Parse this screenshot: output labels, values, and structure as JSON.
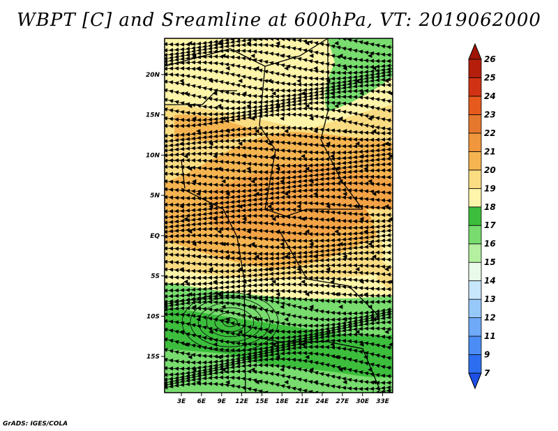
{
  "title": "WBPT [C] and Sreamline at 600hPa, VT: 2019062000",
  "credit": "GrADS: IGES/COLA",
  "map": {
    "lat_labels": [
      "20N",
      "15N",
      "10N",
      "5N",
      "EQ",
      "5S",
      "10S",
      "15S"
    ],
    "lat_values": [
      20,
      15,
      10,
      5,
      0,
      -5,
      -10,
      -15
    ],
    "lon_labels": [
      "3E",
      "6E",
      "9E",
      "12E",
      "15E",
      "18E",
      "21E",
      "24E",
      "27E",
      "30E",
      "33E"
    ],
    "lon_values": [
      3,
      6,
      9,
      12,
      15,
      18,
      21,
      24,
      27,
      30,
      33
    ],
    "lat_range": [
      -19.5,
      24.5
    ],
    "lon_range": [
      0.5,
      34.5
    ]
  },
  "colorbar": {
    "labels": [
      "7",
      "9",
      "11",
      "12",
      "13",
      "14",
      "15",
      "16",
      "17",
      "18",
      "19",
      "20",
      "21",
      "22",
      "23",
      "24",
      "25",
      "26"
    ],
    "colors": [
      "#1e50e6",
      "#2d6ef0",
      "#4b8cf5",
      "#6eaaf8",
      "#96c8fa",
      "#c8e6fc",
      "#eafaea",
      "#b4f0a0",
      "#78dc6e",
      "#3cbe3c",
      "#fff5aa",
      "#fadc82",
      "#f5b450",
      "#f0963c",
      "#e6782d",
      "#e65a1e",
      "#d23214",
      "#b41e0a",
      "#a01406"
    ]
  }
}
